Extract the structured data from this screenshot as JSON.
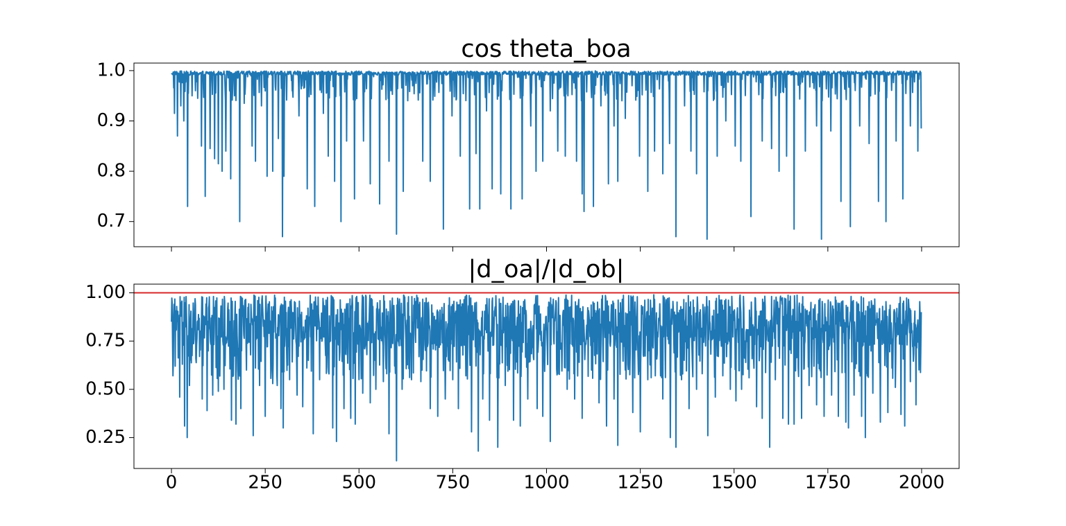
{
  "chart_data": [
    {
      "type": "line",
      "title": "cos theta_boa",
      "xlim": [
        -100,
        2100
      ],
      "ylim": [
        0.65,
        1.015
      ],
      "xticks": [
        0,
        250,
        500,
        750,
        1000,
        1250,
        1500,
        1750,
        2000
      ],
      "xtick_labels_visible": false,
      "yticks": [
        0.7,
        0.8,
        0.9,
        1.0
      ],
      "ytick_labels": [
        "0.7",
        "0.8",
        "0.9",
        "1.0"
      ],
      "grid": false,
      "series": [
        {
          "color": "#1f77b4",
          "n_points": 2000,
          "baseline": 0.995,
          "dips": [
            [
              8,
              0.915
            ],
            [
              16,
              0.87
            ],
            [
              25,
              0.93
            ],
            [
              33,
              0.9
            ],
            [
              43,
              0.73
            ],
            [
              55,
              0.95
            ],
            [
              70,
              0.945
            ],
            [
              80,
              0.85
            ],
            [
              90,
              0.75
            ],
            [
              103,
              0.845
            ],
            [
              115,
              0.825
            ],
            [
              125,
              0.815
            ],
            [
              135,
              0.8
            ],
            [
              145,
              0.84
            ],
            [
              158,
              0.785
            ],
            [
              168,
              0.95
            ],
            [
              182,
              0.7
            ],
            [
              194,
              0.935
            ],
            [
              215,
              0.85
            ],
            [
              224,
              0.82
            ],
            [
              240,
              0.93
            ],
            [
              255,
              0.79
            ],
            [
              270,
              0.8
            ],
            [
              285,
              0.865
            ],
            [
              296,
              0.67
            ],
            [
              300,
              0.79
            ],
            [
              322,
              0.96
            ],
            [
              340,
              0.91
            ],
            [
              362,
              0.765
            ],
            [
              382,
              0.73
            ],
            [
              405,
              0.915
            ],
            [
              418,
              0.83
            ],
            [
              435,
              0.78
            ],
            [
              452,
              0.7
            ],
            [
              467,
              0.86
            ],
            [
              488,
              0.745
            ],
            [
              512,
              0.86
            ],
            [
              530,
              0.775
            ],
            [
              555,
              0.735
            ],
            [
              580,
              0.82
            ],
            [
              600,
              0.675
            ],
            [
              618,
              0.76
            ],
            [
              650,
              0.98
            ],
            [
              670,
              0.82
            ],
            [
              690,
              0.78
            ],
            [
              725,
              0.685
            ],
            [
              748,
              0.91
            ],
            [
              770,
              0.83
            ],
            [
              795,
              0.725
            ],
            [
              812,
              0.835
            ],
            [
              822,
              0.725
            ],
            [
              840,
              0.92
            ],
            [
              855,
              0.765
            ],
            [
              878,
              0.755
            ],
            [
              905,
              0.725
            ],
            [
              935,
              0.745
            ],
            [
              958,
              0.89
            ],
            [
              972,
              0.8
            ],
            [
              990,
              0.82
            ],
            [
              1010,
              0.92
            ],
            [
              1030,
              0.84
            ],
            [
              1050,
              0.83
            ],
            [
              1080,
              0.82
            ],
            [
              1095,
              0.755
            ],
            [
              1100,
              0.72
            ],
            [
              1125,
              0.73
            ],
            [
              1145,
              0.93
            ],
            [
              1165,
              0.775
            ],
            [
              1180,
              0.89
            ],
            [
              1190,
              0.78
            ],
            [
              1210,
              0.905
            ],
            [
              1228,
              0.97
            ],
            [
              1248,
              0.83
            ],
            [
              1270,
              0.76
            ],
            [
              1288,
              0.84
            ],
            [
              1310,
              0.795
            ],
            [
              1328,
              0.855
            ],
            [
              1345,
              0.67
            ],
            [
              1368,
              0.93
            ],
            [
              1385,
              0.84
            ],
            [
              1400,
              0.795
            ],
            [
              1428,
              0.665
            ],
            [
              1455,
              0.83
            ],
            [
              1478,
              0.9
            ],
            [
              1503,
              0.85
            ],
            [
              1518,
              0.82
            ],
            [
              1545,
              0.71
            ],
            [
              1575,
              0.86
            ],
            [
              1600,
              0.845
            ],
            [
              1620,
              0.8
            ],
            [
              1640,
              0.83
            ],
            [
              1660,
              0.685
            ],
            [
              1690,
              0.84
            ],
            [
              1720,
              0.89
            ],
            [
              1733,
              0.665
            ],
            [
              1758,
              0.88
            ],
            [
              1785,
              0.74
            ],
            [
              1810,
              0.69
            ],
            [
              1835,
              0.89
            ],
            [
              1860,
              0.855
            ],
            [
              1885,
              0.74
            ],
            [
              1905,
              0.7
            ],
            [
              1932,
              0.86
            ],
            [
              1950,
              0.745
            ],
            [
              1970,
              0.89
            ],
            [
              1990,
              0.84
            ],
            [
              2000,
              0.885
            ]
          ]
        }
      ]
    },
    {
      "type": "line",
      "title": "|d_oa|/|d_ob|",
      "xlim": [
        -100,
        2100
      ],
      "ylim": [
        0.09,
        1.045
      ],
      "xticks": [
        0,
        250,
        500,
        750,
        1000,
        1250,
        1500,
        1750,
        2000
      ],
      "xtick_labels": [
        "0",
        "250",
        "500",
        "750",
        "1000",
        "1250",
        "1500",
        "1750",
        "2000"
      ],
      "yticks": [
        0.25,
        0.5,
        0.75,
        1.0
      ],
      "ytick_labels": [
        "0.25",
        "0.50",
        "0.75",
        "1.00"
      ],
      "grid": false,
      "reference_line": {
        "y": 1.0,
        "color": "#d62728"
      },
      "series": [
        {
          "color": "#1f77b4",
          "n_points": 2000,
          "low_spikes": [
            [
              10,
              0.62
            ],
            [
              22,
              0.46
            ],
            [
              35,
              0.31
            ],
            [
              42,
              0.25
            ],
            [
              48,
              0.52
            ],
            [
              65,
              0.66
            ],
            [
              82,
              0.45
            ],
            [
              95,
              0.39
            ],
            [
              110,
              0.47
            ],
            [
              125,
              0.49
            ],
            [
              140,
              0.5
            ],
            [
              160,
              0.34
            ],
            [
              172,
              0.32
            ],
            [
              185,
              0.4
            ],
            [
              200,
              0.6
            ],
            [
              218,
              0.26
            ],
            [
              235,
              0.52
            ],
            [
              250,
              0.36
            ],
            [
              270,
              0.53
            ],
            [
              282,
              0.52
            ],
            [
              292,
              0.4
            ],
            [
              298,
              0.3
            ],
            [
              315,
              0.55
            ],
            [
              335,
              0.47
            ],
            [
              350,
              0.41
            ],
            [
              365,
              0.65
            ],
            [
              378,
              0.27
            ],
            [
              395,
              0.55
            ],
            [
              420,
              0.58
            ],
            [
              430,
              0.3
            ],
            [
              440,
              0.23
            ],
            [
              460,
              0.4
            ],
            [
              478,
              0.35
            ],
            [
              490,
              0.32
            ],
            [
              510,
              0.48
            ],
            [
              530,
              0.43
            ],
            [
              545,
              0.5
            ],
            [
              565,
              0.54
            ],
            [
              580,
              0.27
            ],
            [
              600,
              0.13
            ],
            [
              615,
              0.5
            ],
            [
              640,
              0.55
            ],
            [
              665,
              0.54
            ],
            [
              690,
              0.4
            ],
            [
              710,
              0.36
            ],
            [
              730,
              0.45
            ],
            [
              750,
              0.55
            ],
            [
              765,
              0.4
            ],
            [
              785,
              0.57
            ],
            [
              800,
              0.28
            ],
            [
              818,
              0.18
            ],
            [
              830,
              0.45
            ],
            [
              848,
              0.34
            ],
            [
              870,
              0.2
            ],
            [
              890,
              0.52
            ],
            [
              912,
              0.34
            ],
            [
              930,
              0.31
            ],
            [
              950,
              0.45
            ],
            [
              975,
              0.4
            ],
            [
              990,
              0.36
            ],
            [
              1010,
              0.23
            ],
            [
              1030,
              0.58
            ],
            [
              1055,
              0.5
            ],
            [
              1075,
              0.45
            ],
            [
              1095,
              0.35
            ],
            [
              1120,
              0.6
            ],
            [
              1140,
              0.43
            ],
            [
              1160,
              0.31
            ],
            [
              1180,
              0.45
            ],
            [
              1190,
              0.21
            ],
            [
              1210,
              0.6
            ],
            [
              1230,
              0.38
            ],
            [
              1250,
              0.28
            ],
            [
              1270,
              0.55
            ],
            [
              1290,
              0.57
            ],
            [
              1310,
              0.45
            ],
            [
              1330,
              0.25
            ],
            [
              1345,
              0.2
            ],
            [
              1360,
              0.55
            ],
            [
              1380,
              0.4
            ],
            [
              1400,
              0.5
            ],
            [
              1430,
              0.26
            ],
            [
              1450,
              0.46
            ],
            [
              1470,
              0.57
            ],
            [
              1490,
              0.5
            ],
            [
              1505,
              0.44
            ],
            [
              1520,
              0.5
            ],
            [
              1540,
              0.56
            ],
            [
              1560,
              0.41
            ],
            [
              1575,
              0.35
            ],
            [
              1595,
              0.2
            ],
            [
              1610,
              0.55
            ],
            [
              1630,
              0.35
            ],
            [
              1645,
              0.32
            ],
            [
              1660,
              0.32
            ],
            [
              1680,
              0.35
            ],
            [
              1700,
              0.52
            ],
            [
              1720,
              0.42
            ],
            [
              1740,
              0.36
            ],
            [
              1760,
              0.47
            ],
            [
              1778,
              0.36
            ],
            [
              1798,
              0.33
            ],
            [
              1805,
              0.3
            ],
            [
              1820,
              0.47
            ],
            [
              1840,
              0.36
            ],
            [
              1850,
              0.25
            ],
            [
              1870,
              0.48
            ],
            [
              1890,
              0.33
            ],
            [
              1910,
              0.38
            ],
            [
              1930,
              0.51
            ],
            [
              1945,
              0.37
            ],
            [
              1955,
              0.31
            ],
            [
              1970,
              0.54
            ],
            [
              1985,
              0.42
            ],
            [
              2000,
              0.44
            ]
          ]
        }
      ]
    }
  ]
}
